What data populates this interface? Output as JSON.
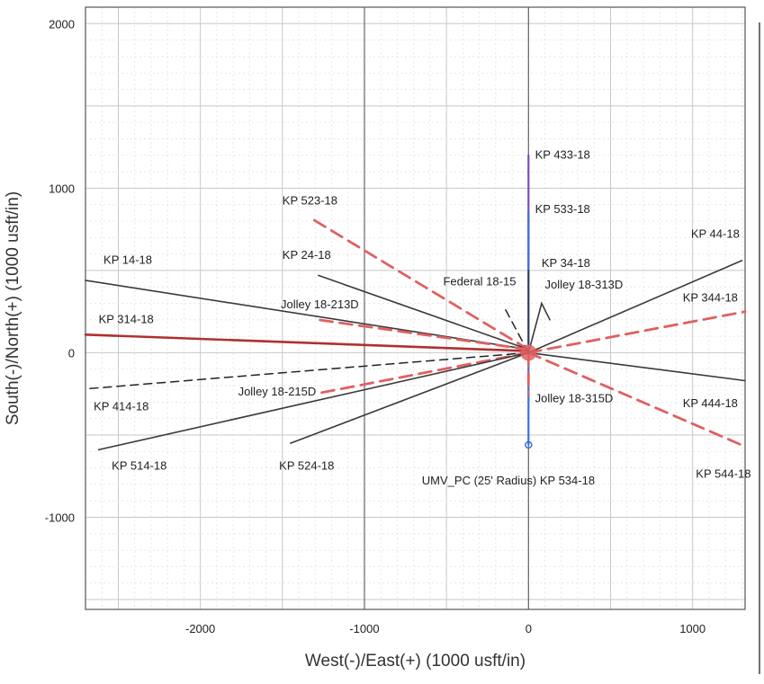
{
  "chart_data": {
    "type": "line",
    "title": "",
    "xlabel": "West(-)/East(+) (1000 usft/in)",
    "ylabel": "South(-)/North(+) (1000 usft/in)",
    "xlim": [
      -2700,
      1320
    ],
    "ylim": [
      -1560,
      2100
    ],
    "xticks": [
      -2000,
      -1000,
      0,
      1000
    ],
    "yticks": [
      2000,
      1000,
      0,
      -1000
    ],
    "grid": true,
    "colors": {
      "solid": "#3a3a3a",
      "dashed_red": "#e06060",
      "dashed_black": "#222222",
      "red_line": "#b03030",
      "blue": "#3b6fd8",
      "purple": "#7b4bb8"
    },
    "series": [
      {
        "name": "KP 433-18",
        "style": "purple",
        "x": [
          0,
          0
        ],
        "y": [
          50,
          1200
        ]
      },
      {
        "name": "KP 533-18",
        "style": "blue",
        "x": [
          0,
          0
        ],
        "y": [
          50,
          850
        ]
      },
      {
        "name": "KP 34-18",
        "style": "solid",
        "x": [
          0,
          0
        ],
        "y": [
          50,
          500
        ]
      },
      {
        "name": "KP 523-18",
        "style": "dashed_red",
        "x": [
          0,
          -1330
        ],
        "y": [
          20,
          820
        ]
      },
      {
        "name": "KP 24-18",
        "style": "solid",
        "x": [
          0,
          -1280
        ],
        "y": [
          20,
          470
        ]
      },
      {
        "name": "KP 14-18",
        "style": "solid",
        "x": [
          0,
          -2700
        ],
        "y": [
          20,
          440
        ]
      },
      {
        "name": "Jolley 18-213D",
        "style": "dashed_red",
        "x": [
          0,
          -1280
        ],
        "y": [
          20,
          200
        ]
      },
      {
        "name": "KP 314-18",
        "style": "red_line",
        "x": [
          0,
          -2700
        ],
        "y": [
          10,
          110
        ]
      },
      {
        "name": "KP 414-18",
        "style": "dashed_black",
        "x": [
          0,
          -2700
        ],
        "y": [
          0,
          -220
        ]
      },
      {
        "name": "Jolley 18-215D",
        "style": "dashed_red",
        "x": [
          0,
          -1300
        ],
        "y": [
          0,
          -250
        ]
      },
      {
        "name": "KP 514-18",
        "style": "solid",
        "x": [
          0,
          -2620
        ],
        "y": [
          0,
          -590
        ]
      },
      {
        "name": "KP 524-18",
        "style": "solid",
        "x": [
          0,
          -1450
        ],
        "y": [
          0,
          -550
        ]
      },
      {
        "name": "KP 534-18",
        "style": "blue",
        "x": [
          0,
          0
        ],
        "y": [
          0,
          -560
        ]
      },
      {
        "name": "Jolley 18-315D",
        "style": "dashed_red",
        "x": [
          0,
          0
        ],
        "y": [
          0,
          -250
        ]
      },
      {
        "name": "KP 544-18",
        "style": "dashed_red",
        "x": [
          0,
          1320
        ],
        "y": [
          0,
          -570
        ]
      },
      {
        "name": "KP 444-18",
        "style": "solid",
        "x": [
          0,
          1320
        ],
        "y": [
          0,
          -170
        ]
      },
      {
        "name": "KP 344-18",
        "style": "dashed_red",
        "x": [
          0,
          1320
        ],
        "y": [
          0,
          250
        ]
      },
      {
        "name": "KP 44-18",
        "style": "solid",
        "x": [
          0,
          1300
        ],
        "y": [
          0,
          560
        ]
      },
      {
        "name": "Jolley 18-313D",
        "style": "solid",
        "x": [
          0,
          80,
          130
        ],
        "y": [
          0,
          300,
          200
        ]
      },
      {
        "name": "Federal 18-15",
        "style": "dashed_black",
        "x": [
          0,
          -150
        ],
        "y": [
          0,
          280
        ]
      }
    ],
    "labels": [
      {
        "text": "KP 433-18",
        "x": 40,
        "y": 1180
      },
      {
        "text": "KP 533-18",
        "x": 40,
        "y": 850
      },
      {
        "text": "KP 34-18",
        "x": 80,
        "y": 520
      },
      {
        "text": "KP 523-18",
        "x": -1500,
        "y": 900
      },
      {
        "text": "KP 24-18",
        "x": -1500,
        "y": 570
      },
      {
        "text": "KP 14-18",
        "x": -2590,
        "y": 540
      },
      {
        "text": "Federal 18-15",
        "x": -520,
        "y": 410
      },
      {
        "text": "Jolley 18-313D",
        "x": 100,
        "y": 390
      },
      {
        "text": "Jolley 18-213D",
        "x": -1510,
        "y": 270
      },
      {
        "text": "KP 314-18",
        "x": -2620,
        "y": 180
      },
      {
        "text": "KP 44-18",
        "x": 990,
        "y": 700
      },
      {
        "text": "KP 344-18",
        "x": 940,
        "y": 310
      },
      {
        "text": "Jolley 18-215D",
        "x": -1770,
        "y": -260
      },
      {
        "text": "KP 414-18",
        "x": -2650,
        "y": -350
      },
      {
        "text": "Jolley 18-315D",
        "x": 40,
        "y": -300
      },
      {
        "text": "KP 444-18",
        "x": 940,
        "y": -330
      },
      {
        "text": "KP 514-18",
        "x": -2540,
        "y": -710
      },
      {
        "text": "KP 524-18",
        "x": -1520,
        "y": -710
      },
      {
        "text": "UMV_PC (25' Radius) KP 534-18",
        "x": -650,
        "y": -800
      },
      {
        "text": "KP 544-18",
        "x": 1020,
        "y": -760
      }
    ]
  }
}
